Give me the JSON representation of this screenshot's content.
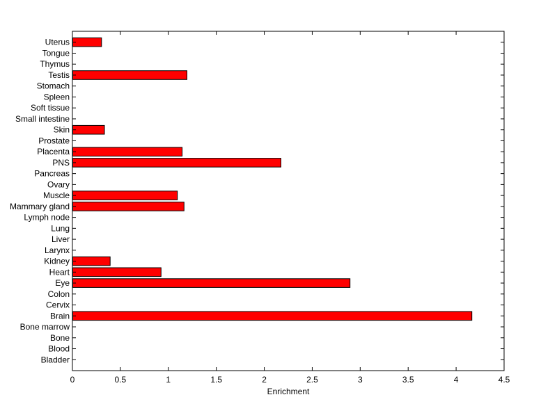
{
  "chart_data": {
    "type": "bar",
    "orientation": "horizontal",
    "title": "",
    "xlabel": "Enrichment",
    "ylabel": "",
    "xlim": [
      0,
      4.5
    ],
    "xticks": [
      "0",
      "0.5",
      "1",
      "1.5",
      "2",
      "2.5",
      "3",
      "3.5",
      "4",
      "4.5"
    ],
    "grid": false,
    "bar_color": "#ff0000",
    "bar_edge_color": "#000000",
    "categories": [
      "Bladder",
      "Blood",
      "Bone",
      "Bone marrow",
      "Brain",
      "Cervix",
      "Colon",
      "Eye",
      "Heart",
      "Kidney",
      "Larynx",
      "Liver",
      "Lung",
      "Lymph node",
      "Mammary gland",
      "Muscle",
      "Ovary",
      "Pancreas",
      "PNS",
      "Placenta",
      "Prostate",
      "Skin",
      "Small intestine",
      "Soft tissue",
      "Spleen",
      "Stomach",
      "Testis",
      "Thymus",
      "Tongue",
      "Uterus"
    ],
    "values": [
      0,
      0,
      0,
      0,
      4.16,
      0,
      0,
      2.89,
      0.92,
      0.39,
      0,
      0,
      0,
      0,
      1.16,
      1.09,
      0,
      0,
      2.17,
      1.14,
      0,
      0.33,
      0,
      0,
      0,
      0,
      1.19,
      0,
      0,
      0.3
    ]
  }
}
